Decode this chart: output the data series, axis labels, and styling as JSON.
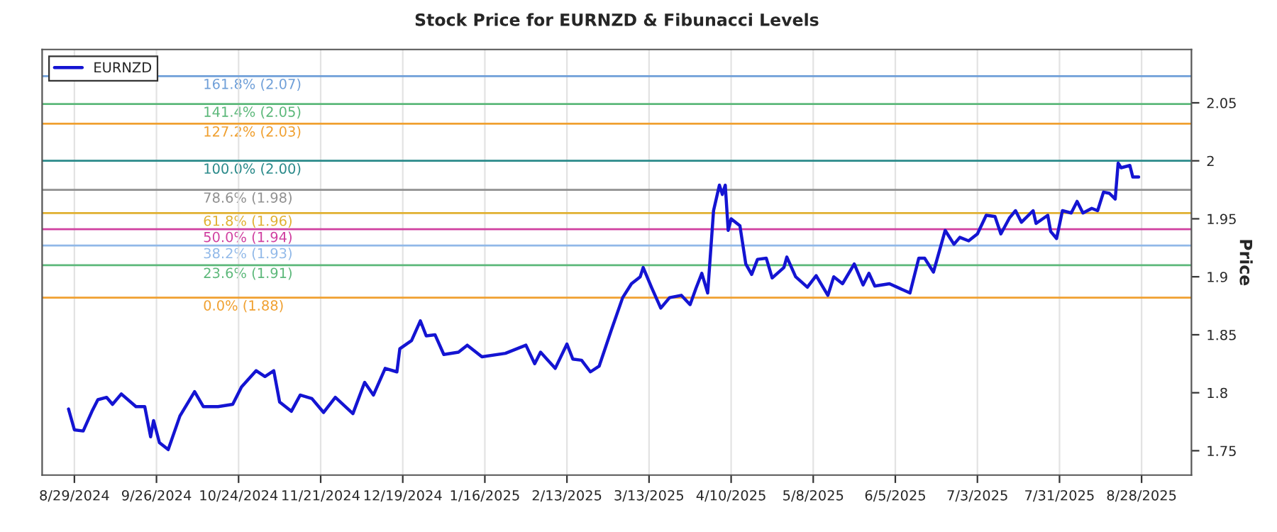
{
  "chart_data": {
    "type": "line",
    "title": "Stock Price for EURNZD & Fibunacci Levels",
    "ylabel": "Price",
    "x": [
      "2024-08-27",
      "2024-08-29",
      "2024-09-01",
      "2024-09-04",
      "2024-09-06",
      "2024-09-09",
      "2024-09-11",
      "2024-09-14",
      "2024-09-19",
      "2024-09-22",
      "2024-09-24",
      "2024-09-25",
      "2024-09-27",
      "2024-09-30",
      "2024-10-04",
      "2024-10-09",
      "2024-10-12",
      "2024-10-17",
      "2024-10-22",
      "2024-10-25",
      "2024-10-30",
      "2024-11-02",
      "2024-11-05",
      "2024-11-07",
      "2024-11-11",
      "2024-11-14",
      "2024-11-18",
      "2024-11-22",
      "2024-11-26",
      "2024-12-02",
      "2024-12-06",
      "2024-12-09",
      "2024-12-13",
      "2024-12-17",
      "2024-12-18",
      "2024-12-22",
      "2024-12-25",
      "2024-12-27",
      "2024-12-30",
      "2025-01-02",
      "2025-01-07",
      "2025-01-10",
      "2025-01-15",
      "2025-01-23",
      "2025-01-30",
      "2025-02-02",
      "2025-02-04",
      "2025-02-09",
      "2025-02-13",
      "2025-02-15",
      "2025-02-18",
      "2025-02-21",
      "2025-02-24",
      "2025-02-28",
      "2025-03-04",
      "2025-03-07",
      "2025-03-10",
      "2025-03-11",
      "2025-03-14",
      "2025-03-17",
      "2025-03-20",
      "2025-03-24",
      "2025-03-27",
      "2025-03-29",
      "2025-03-31",
      "2025-04-02",
      "2025-04-04",
      "2025-04-06",
      "2025-04-07",
      "2025-04-08",
      "2025-04-09",
      "2025-04-10",
      "2025-04-13",
      "2025-04-15",
      "2025-04-17",
      "2025-04-19",
      "2025-04-22",
      "2025-04-24",
      "2025-04-28",
      "2025-04-29",
      "2025-05-02",
      "2025-05-06",
      "2025-05-09",
      "2025-05-13",
      "2025-05-15",
      "2025-05-18",
      "2025-05-22",
      "2025-05-25",
      "2025-05-27",
      "2025-05-29",
      "2025-06-03",
      "2025-06-10",
      "2025-06-13",
      "2025-06-15",
      "2025-06-18",
      "2025-06-22",
      "2025-06-25",
      "2025-06-27",
      "2025-06-30",
      "2025-07-03",
      "2025-07-06",
      "2025-07-09",
      "2025-07-11",
      "2025-07-14",
      "2025-07-16",
      "2025-07-18",
      "2025-07-22",
      "2025-07-23",
      "2025-07-27",
      "2025-07-28",
      "2025-07-30",
      "2025-08-01",
      "2025-08-04",
      "2025-08-06",
      "2025-08-08",
      "2025-08-11",
      "2025-08-13",
      "2025-08-15",
      "2025-08-17",
      "2025-08-19",
      "2025-08-20",
      "2025-08-21",
      "2025-08-24",
      "2025-08-25",
      "2025-08-27"
    ],
    "series": [
      {
        "name": "EURNZD",
        "color": "#1414d2",
        "values": [
          1.786,
          1.768,
          1.767,
          1.784,
          1.794,
          1.796,
          1.79,
          1.799,
          1.788,
          1.788,
          1.762,
          1.776,
          1.757,
          1.751,
          1.78,
          1.801,
          1.788,
          1.788,
          1.79,
          1.805,
          1.819,
          1.814,
          1.819,
          1.792,
          1.784,
          1.798,
          1.795,
          1.783,
          1.796,
          1.782,
          1.809,
          1.798,
          1.821,
          1.818,
          1.838,
          1.845,
          1.862,
          1.849,
          1.85,
          1.833,
          1.835,
          1.841,
          1.831,
          1.834,
          1.841,
          1.825,
          1.835,
          1.821,
          1.842,
          1.829,
          1.828,
          1.818,
          1.823,
          1.853,
          1.882,
          1.894,
          1.9,
          1.908,
          1.89,
          1.873,
          1.882,
          1.884,
          1.876,
          1.89,
          1.903,
          1.886,
          1.957,
          1.979,
          1.971,
          1.979,
          1.94,
          1.95,
          1.944,
          1.911,
          1.902,
          1.915,
          1.916,
          1.899,
          1.908,
          1.917,
          1.9,
          1.891,
          1.901,
          1.884,
          1.9,
          1.894,
          1.911,
          1.893,
          1.903,
          1.892,
          1.894,
          1.886,
          1.916,
          1.916,
          1.904,
          1.94,
          1.928,
          1.934,
          1.931,
          1.937,
          1.953,
          1.952,
          1.937,
          1.951,
          1.957,
          1.947,
          1.957,
          1.946,
          1.953,
          1.939,
          1.933,
          1.957,
          1.955,
          1.965,
          1.955,
          1.959,
          1.957,
          1.973,
          1.972,
          1.967,
          1.998,
          1.994,
          1.996,
          1.986,
          1.986
        ]
      }
    ],
    "xlim": [
      "2024-08-18",
      "2025-09-14"
    ],
    "xticks": [
      {
        "value": "2024-08-29",
        "label": "8/29/2024"
      },
      {
        "value": "2024-09-26",
        "label": "9/26/2024"
      },
      {
        "value": "2024-10-24",
        "label": "10/24/2024"
      },
      {
        "value": "2024-11-21",
        "label": "11/21/2024"
      },
      {
        "value": "2024-12-19",
        "label": "12/19/2024"
      },
      {
        "value": "2025-01-16",
        "label": "1/16/2025"
      },
      {
        "value": "2025-02-13",
        "label": "2/13/2025"
      },
      {
        "value": "2025-03-13",
        "label": "3/13/2025"
      },
      {
        "value": "2025-04-10",
        "label": "4/10/2025"
      },
      {
        "value": "2025-05-08",
        "label": "5/8/2025"
      },
      {
        "value": "2025-06-05",
        "label": "6/5/2025"
      },
      {
        "value": "2025-07-03",
        "label": "7/3/2025"
      },
      {
        "value": "2025-07-31",
        "label": "7/31/2025"
      },
      {
        "value": "2025-08-28",
        "label": "8/28/2025"
      }
    ],
    "ylim": [
      1.729,
      2.096
    ],
    "yticks": [
      1.75,
      1.8,
      1.85,
      1.9,
      1.95,
      2,
      2.05
    ],
    "ref_lines": [
      {
        "axis": "y",
        "value": 2.073,
        "label": "161.8% (2.07)",
        "color": "#6f9fd8"
      },
      {
        "axis": "y",
        "value": 2.049,
        "label": "141.4% (2.05)",
        "color": "#5cb87a"
      },
      {
        "axis": "y",
        "value": 2.032,
        "label": "127.2% (2.03)",
        "color": "#f0a030"
      },
      {
        "axis": "y",
        "value": 2.0,
        "label": "100.0% (2.00)",
        "color": "#2a8a8a"
      },
      {
        "axis": "y",
        "value": 1.975,
        "label": "78.6% (1.98)",
        "color": "#909090"
      },
      {
        "axis": "y",
        "value": 1.955,
        "label": "61.8% (1.96)",
        "color": "#e0b030"
      },
      {
        "axis": "y",
        "value": 1.941,
        "label": "50.0% (1.94)",
        "color": "#d040a0"
      },
      {
        "axis": "y",
        "value": 1.927,
        "label": "38.2% (1.93)",
        "color": "#90b8e8"
      },
      {
        "axis": "y",
        "value": 1.91,
        "label": "23.6% (1.91)",
        "color": "#5cb87a"
      },
      {
        "axis": "y",
        "value": 1.882,
        "label": "0.0% (1.88)",
        "color": "#f0a030"
      }
    ],
    "grid": "x",
    "legend": "top left",
    "marker": "none",
    "line_style": "solid"
  }
}
